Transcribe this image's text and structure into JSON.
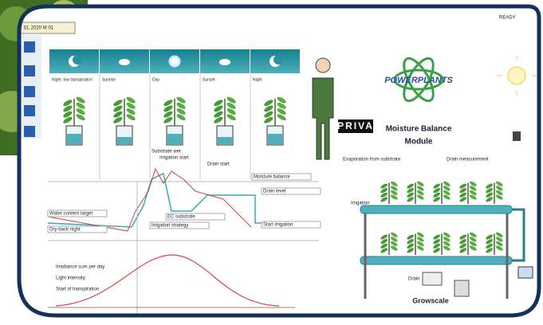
{
  "app": {
    "tab": "EL 2020 M 01",
    "status": "READY"
  },
  "phases": [
    "Night: low transpiration",
    "Sunrise",
    "Day",
    "Sunset",
    "Night"
  ],
  "states": [
    "Substrate wet",
    "Irrigation start",
    "Drain start"
  ],
  "chart": {
    "labels": [
      "Water content target",
      "Dry-back night",
      "EC substrate",
      "Irrigation strategy",
      "Moisture balance",
      "Drain level",
      "Start irrigation"
    ]
  },
  "light": {
    "labels": [
      "Irradiance sum per day",
      "Light intensity",
      "Start of transpiration"
    ]
  },
  "brand": "PRIVA",
  "logo": "POWERPLANTS",
  "module_title": [
    "Moisture Balance",
    "Module"
  ],
  "greenhouse": {
    "labels": [
      "Evaporation from substrate",
      "Drain measurement",
      "Irrigation",
      "Drain"
    ],
    "name": "Growscale"
  }
}
